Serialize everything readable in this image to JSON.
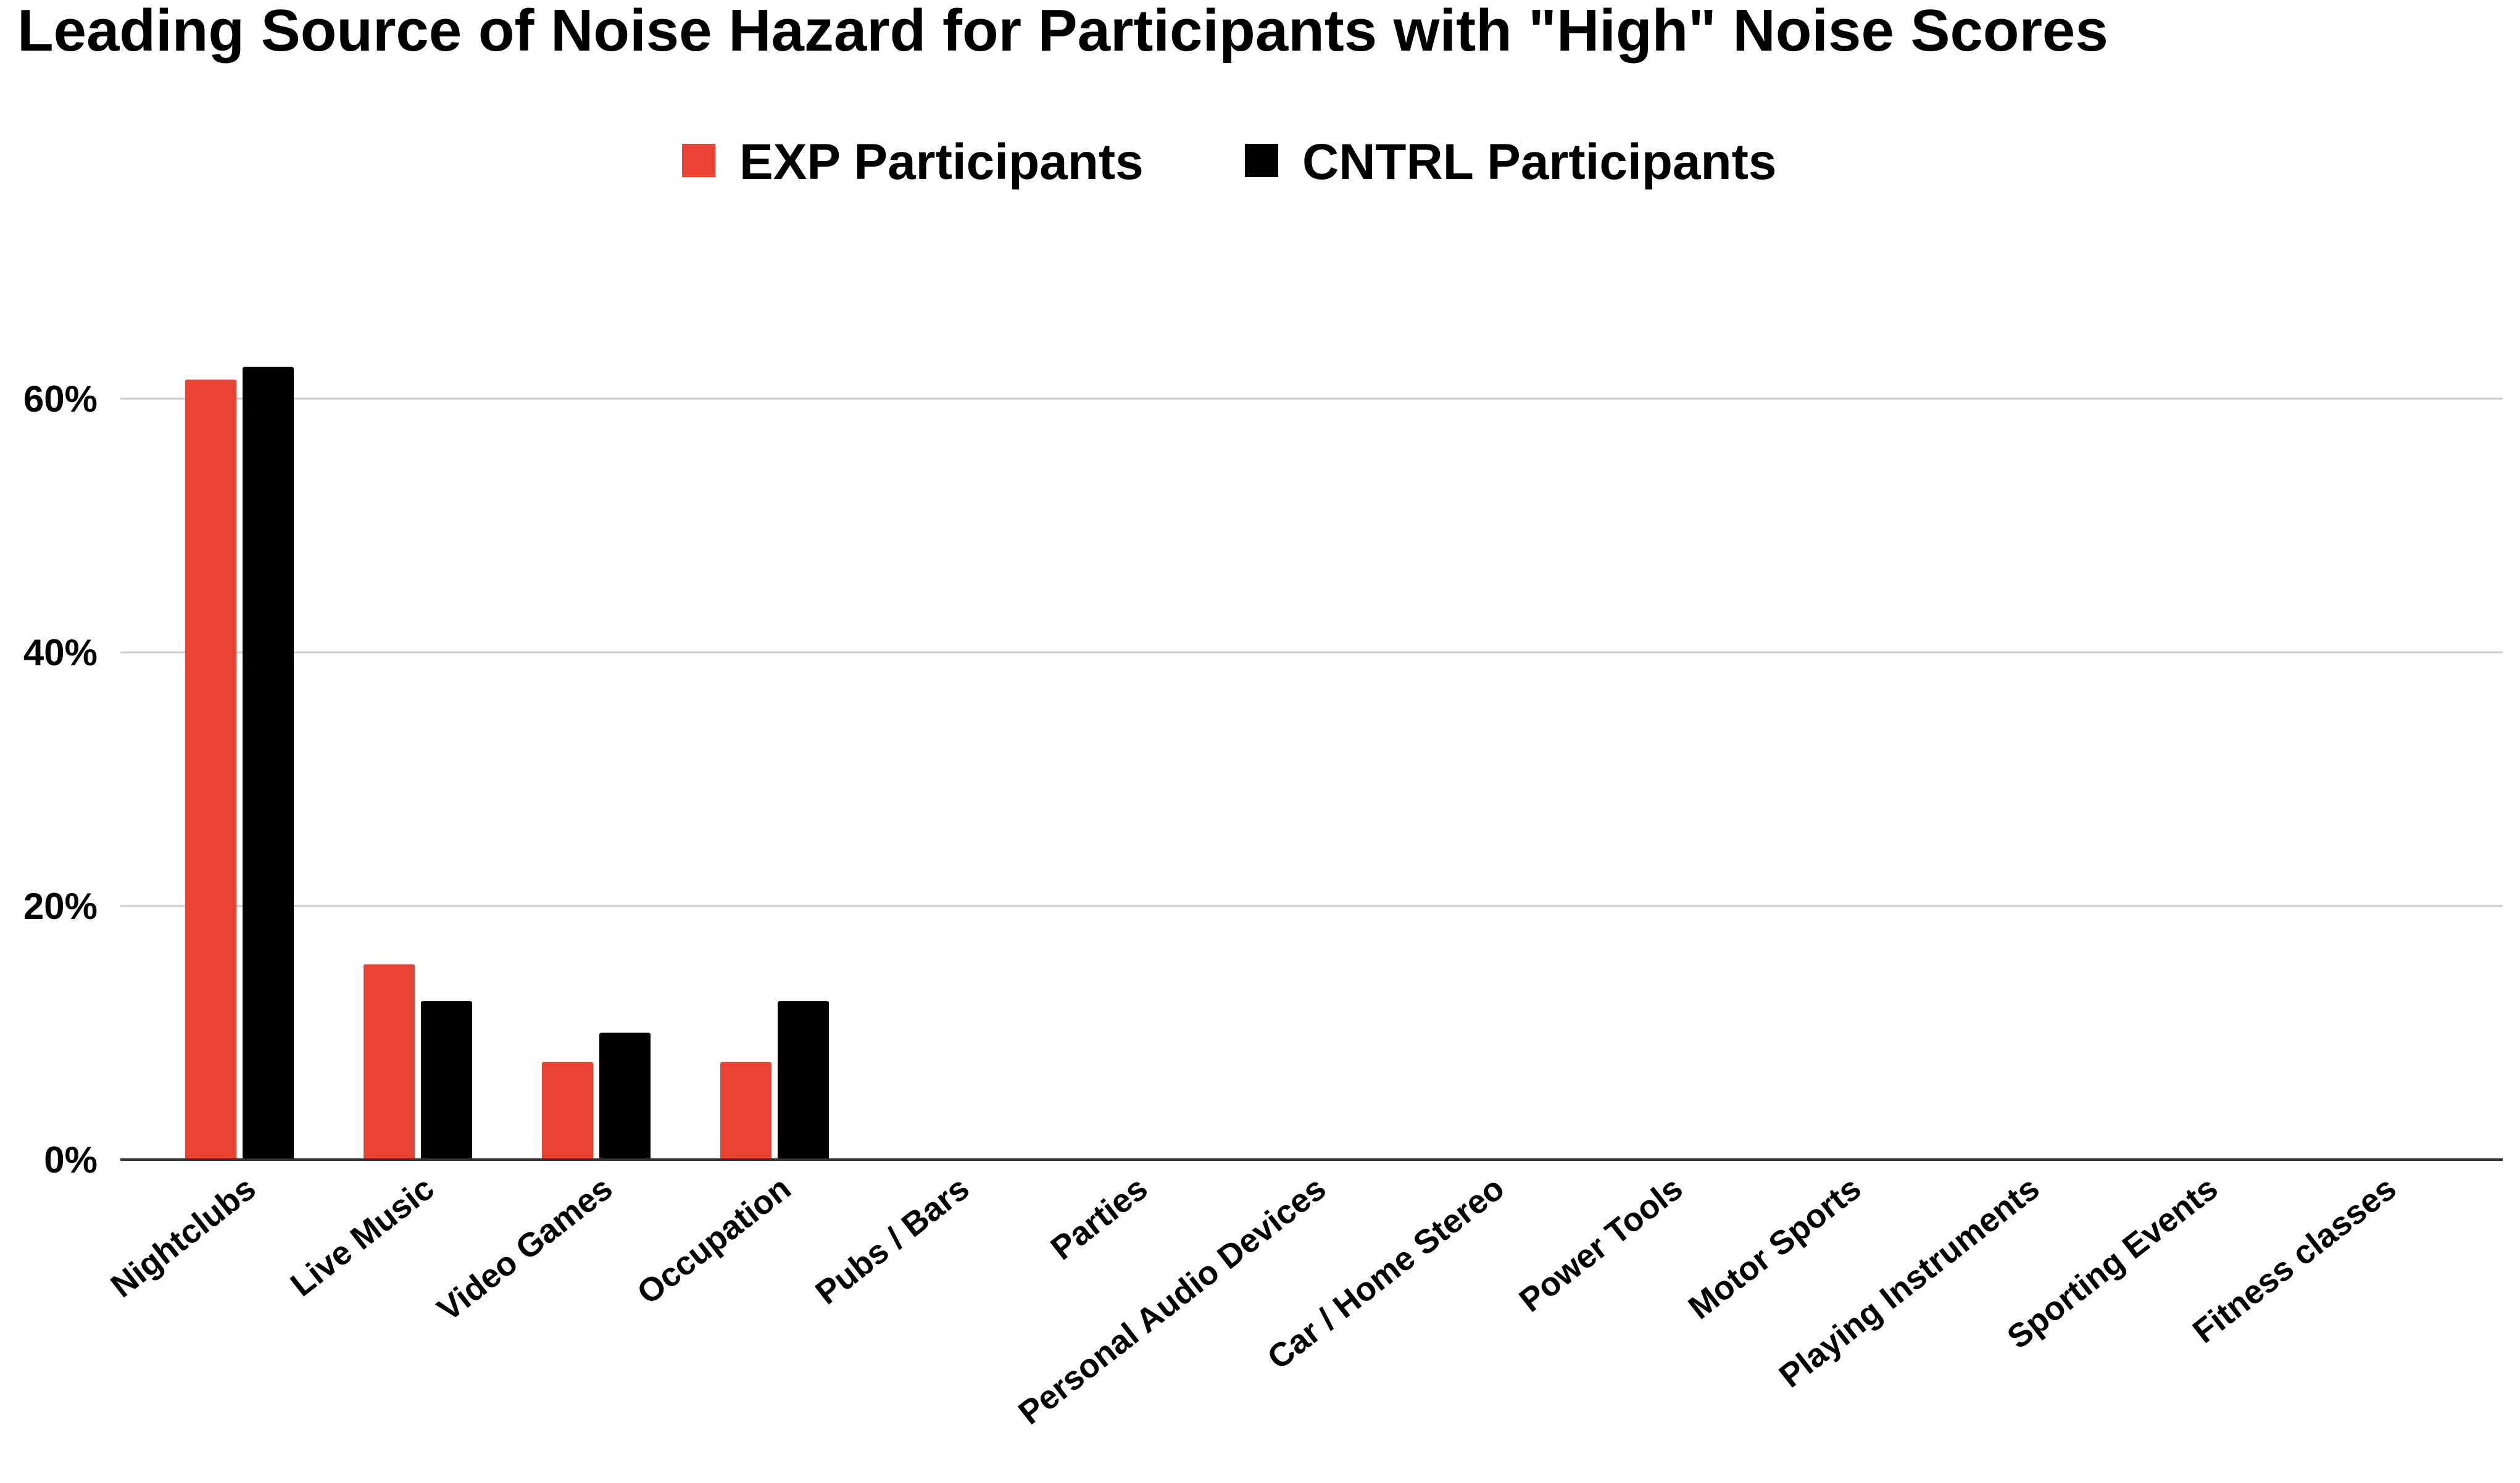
{
  "chart_data": {
    "type": "bar",
    "title": "Leading Source of Noise Hazard for Participants with \"High\" Noise Scores",
    "xlabel": "",
    "ylabel": "",
    "categories": [
      "Nightclubs",
      "Live Music",
      "Video Games",
      "Occupation",
      "Pubs / Bars",
      "Parties",
      "Personal Audio Devices",
      "Car / Home Stereo",
      "Power Tools",
      "Motor Sports",
      "Playing Instruments",
      "Sporting Events",
      "Fitness classes"
    ],
    "series": [
      {
        "name": "EXP Participants",
        "color": "#ea4335",
        "values": [
          61.5,
          15.4,
          7.7,
          7.7,
          0,
          0,
          0,
          0,
          0,
          0,
          0,
          0,
          0
        ]
      },
      {
        "name": "CNTRL Participants",
        "color": "#000000",
        "values": [
          62.5,
          12.5,
          10,
          12.5,
          0,
          0,
          0,
          0,
          0,
          0,
          0,
          0,
          0
        ]
      }
    ],
    "ylim": [
      0,
      70
    ],
    "yticks": [
      0,
      20,
      40,
      60
    ],
    "ytick_labels": [
      "0%",
      "20%",
      "40%",
      "60%"
    ],
    "grid": true,
    "legend_position": "top-center"
  }
}
